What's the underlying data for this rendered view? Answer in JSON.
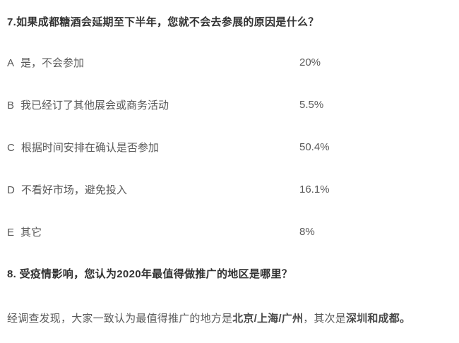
{
  "question7": {
    "title": "7.如果成都糖酒会延期至下半年，您就不会去参展的原因是什么？",
    "options": [
      {
        "letter": "A",
        "text": "是，不会参加",
        "percent": "20%"
      },
      {
        "letter": "B",
        "text": "我已经订了其他展会或商务活动",
        "percent": "5.5%"
      },
      {
        "letter": "C",
        "text": "根据时间安排在确认是否参加",
        "percent": "50.4%"
      },
      {
        "letter": "D",
        "text": "不看好市场，避免投入",
        "percent": "16.1%"
      },
      {
        "letter": "E",
        "text": "其它",
        "percent": "8%"
      }
    ]
  },
  "question8": {
    "title": "8. 受疫情影响，您认为2020年最值得做推广的地区是哪里？",
    "answer": {
      "prefix": "经调查发现，大家一致认为最值得推广的地方是",
      "bold_cities_1": "北京/上海/广州",
      "middle": "，其次是",
      "bold_cities_2": "深圳和成都。"
    }
  },
  "colors": {
    "heading_text": "#333333",
    "body_text": "#595959",
    "background": "#ffffff"
  }
}
